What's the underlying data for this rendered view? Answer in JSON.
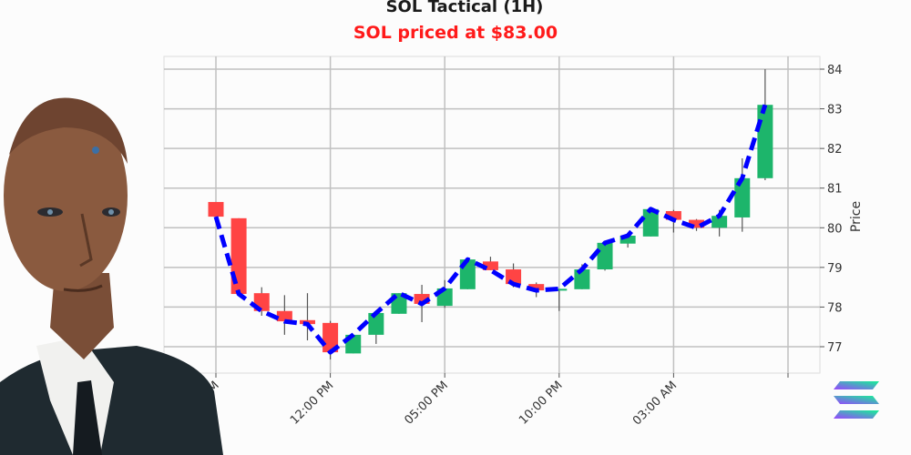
{
  "title": "SOL Tactical (1H)",
  "subtitle": "SOL priced at $83.00",
  "colors": {
    "up": "#1db56b",
    "down": "#ff4444",
    "line": "#0000ff",
    "subtitle": "#ff1a1a"
  },
  "icons": [
    "solana-logo-icon",
    "trader-portrait"
  ],
  "chart_data": {
    "type": "candlestick",
    "ylabel": "Price",
    "ylim": [
      76.8,
      84.3
    ],
    "yticks": [
      77,
      78,
      79,
      80,
      81,
      82,
      83,
      84
    ],
    "xtick_labels": [
      "07:00 AM",
      "12:00 PM",
      "05:00 PM",
      "10:00 PM",
      "03:00 AM",
      ""
    ],
    "xtick_candle_index": [
      0,
      5,
      10,
      15,
      20,
      25
    ],
    "grid": true,
    "overlay_line": "close, blue dashed",
    "candles": [
      {
        "o": 80.65,
        "h": 80.65,
        "l": 80.28,
        "c": 80.28
      },
      {
        "o": 80.24,
        "h": 80.24,
        "l": 78.33,
        "c": 78.33
      },
      {
        "o": 78.35,
        "h": 78.5,
        "l": 77.78,
        "c": 77.9
      },
      {
        "o": 77.9,
        "h": 78.3,
        "l": 77.3,
        "c": 77.64
      },
      {
        "o": 77.67,
        "h": 78.35,
        "l": 77.16,
        "c": 77.57
      },
      {
        "o": 77.6,
        "h": 77.65,
        "l": 76.68,
        "c": 76.86
      },
      {
        "o": 76.83,
        "h": 77.3,
        "l": 76.83,
        "c": 77.3
      },
      {
        "o": 77.3,
        "h": 77.85,
        "l": 77.07,
        "c": 77.85
      },
      {
        "o": 77.83,
        "h": 78.35,
        "l": 77.83,
        "c": 78.35
      },
      {
        "o": 78.33,
        "h": 78.56,
        "l": 77.62,
        "c": 78.08
      },
      {
        "o": 78.03,
        "h": 78.68,
        "l": 77.98,
        "c": 78.47
      },
      {
        "o": 78.45,
        "h": 79.2,
        "l": 78.45,
        "c": 79.2
      },
      {
        "o": 79.15,
        "h": 79.27,
        "l": 78.93,
        "c": 78.93
      },
      {
        "o": 78.95,
        "h": 79.1,
        "l": 78.5,
        "c": 78.58
      },
      {
        "o": 78.58,
        "h": 78.62,
        "l": 78.25,
        "c": 78.42
      },
      {
        "o": 78.42,
        "h": 78.46,
        "l": 77.9,
        "c": 78.46
      },
      {
        "o": 78.45,
        "h": 79.08,
        "l": 78.45,
        "c": 78.95
      },
      {
        "o": 78.95,
        "h": 79.62,
        "l": 78.92,
        "c": 79.62
      },
      {
        "o": 79.6,
        "h": 79.8,
        "l": 79.5,
        "c": 79.8
      },
      {
        "o": 79.78,
        "h": 80.47,
        "l": 79.78,
        "c": 80.47
      },
      {
        "o": 80.42,
        "h": 80.45,
        "l": 79.88,
        "c": 80.2
      },
      {
        "o": 80.2,
        "h": 80.22,
        "l": 79.92,
        "c": 80.0
      },
      {
        "o": 80.0,
        "h": 80.45,
        "l": 79.78,
        "c": 80.3
      },
      {
        "o": 80.26,
        "h": 81.75,
        "l": 79.9,
        "c": 81.25
      },
      {
        "o": 81.25,
        "h": 84.0,
        "l": 81.2,
        "c": 83.1
      }
    ]
  }
}
